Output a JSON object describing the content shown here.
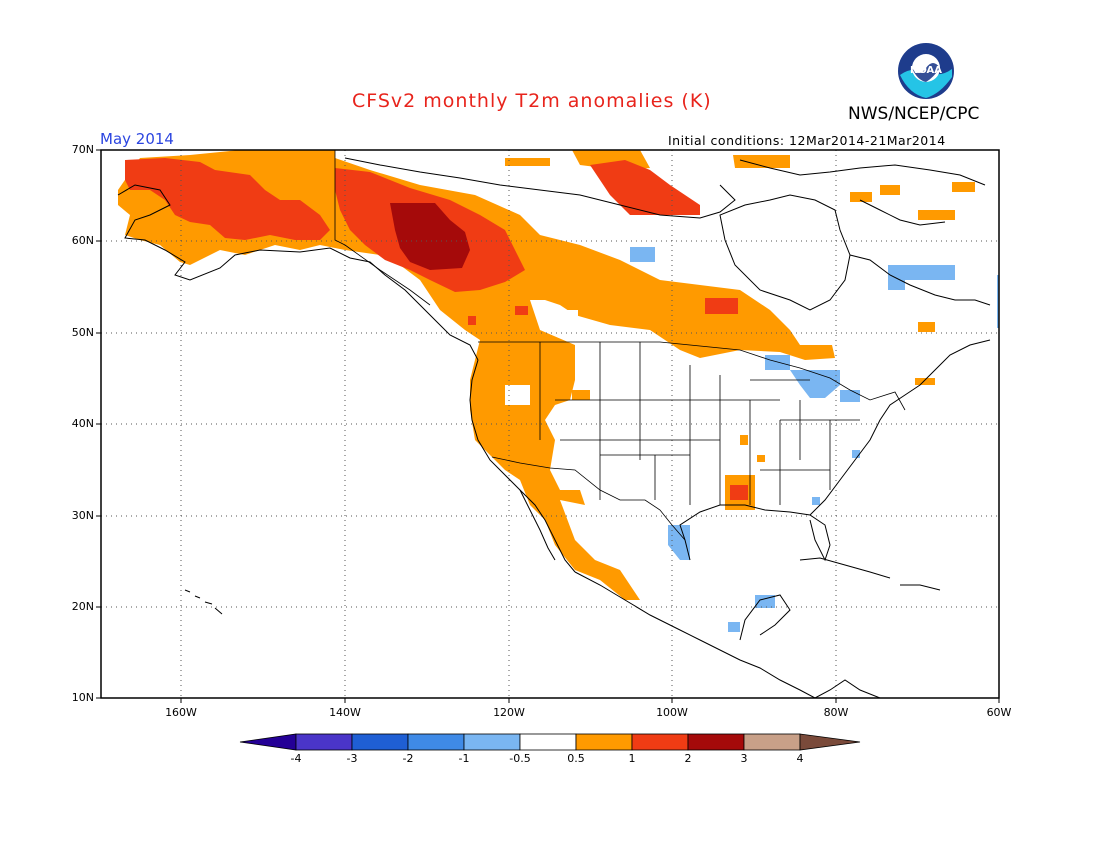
{
  "header": {
    "title": "CFSv2 monthly T2m anomalies (K)",
    "agency": "NWS/NCEP/CPC",
    "month": "May 2014",
    "initial_conditions": "Initial conditions: 12Mar2014-21Mar2014"
  },
  "logo": {
    "name": "noaa-logo",
    "text": "NOAA"
  },
  "map": {
    "projection": "lat-lon",
    "lon_range": [
      -172,
      -60
    ],
    "lat_range": [
      10,
      70
    ],
    "lat_ticks": [
      "70N",
      "60N",
      "50N",
      "40N",
      "30N",
      "20N",
      "10N"
    ],
    "lon_ticks": [
      "160W",
      "140W",
      "120W",
      "100W",
      "80W",
      "60W"
    ],
    "grid": "dotted"
  },
  "colorbar": {
    "levels": [
      "-4",
      "-3",
      "-2",
      "-1",
      "-0.5",
      "0.5",
      "1",
      "2",
      "3",
      "4"
    ],
    "colors": [
      "#240096",
      "#4a35c8",
      "#1f5fd4",
      "#3f8ae6",
      "#7ab6f2",
      "#ffffff",
      "#ff9a00",
      "#f03c14",
      "#a50a0a",
      "#c8a088",
      "#7a4a3a"
    ]
  },
  "anomaly_regions": [
    {
      "level": "0.5 to 1",
      "color": "#ff9a00",
      "area": "Alaska, western Canada, US West Coast"
    },
    {
      "level": "1 to 2",
      "color": "#f03c14",
      "area": "Alaska, Yukon, northern Canada"
    },
    {
      "level": "2 to 3",
      "color": "#a50a0a",
      "area": "northern British Columbia"
    },
    {
      "level": "-1 to -0.5",
      "color": "#7ab6f2",
      "area": "Great Lakes, Texas coast, Hudson Strait"
    }
  ]
}
